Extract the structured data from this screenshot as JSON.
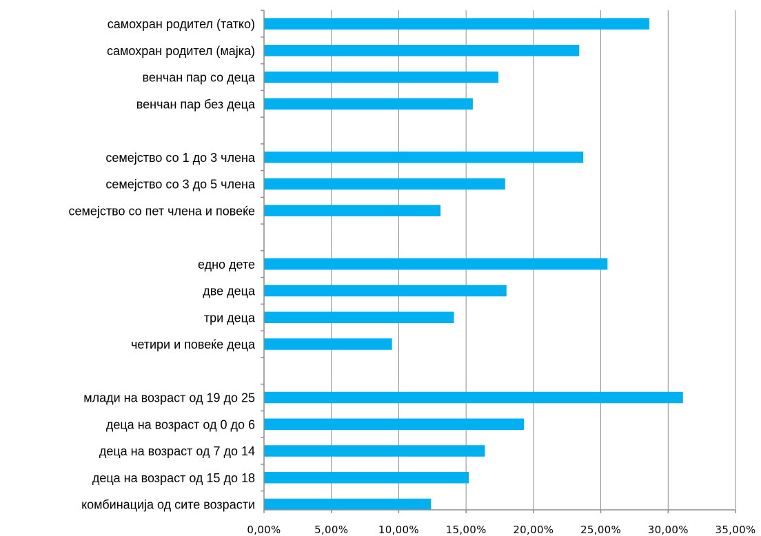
{
  "chart_data": {
    "type": "bar",
    "orientation": "horizontal",
    "title": "",
    "xlabel": "",
    "ylabel": "",
    "xlim": [
      0,
      35
    ],
    "grid": true,
    "legend": "none",
    "bar_color": "#00b0f0",
    "x_ticks": [
      "0,00%",
      "5,00%",
      "10,00%",
      "15,00%",
      "20,00%",
      "25,00%",
      "30,00%",
      "35,00%"
    ],
    "categories": [
      "самохран родител (татко)",
      "самохран родител (мајка)",
      "венчан пар со деца",
      "венчан пар без деца",
      "",
      "семејство со 1 до 3 члена",
      "семејство со 3 до 5 члена",
      "семејство со пет члена и повеќе",
      "",
      "едно дете",
      "две деца",
      "три деца",
      "четири и повеќе деца",
      "",
      "млади на возраст од 19 до 25",
      "деца на возраст од 0 до 6",
      "деца на возраст од 7 до 14",
      "деца на возраст од 15 до 18",
      "комбинација од сите возрасти"
    ],
    "values": [
      28.6,
      23.4,
      17.4,
      15.5,
      null,
      23.7,
      17.9,
      13.1,
      null,
      25.5,
      18.0,
      14.1,
      9.5,
      null,
      31.1,
      19.3,
      16.4,
      15.2,
      12.4
    ]
  }
}
